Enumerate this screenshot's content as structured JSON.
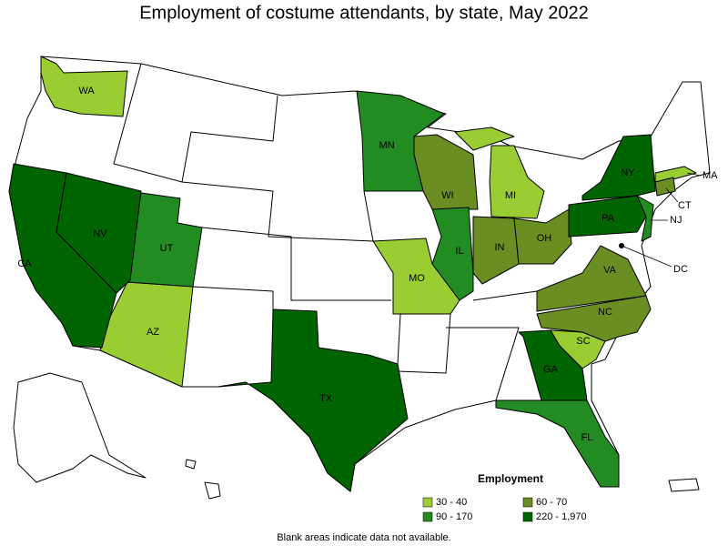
{
  "title": "Employment of costume attendants, by state, May 2022",
  "legend": {
    "title": "Employment",
    "items": [
      {
        "label": "30 - 40",
        "color": "#9acd32",
        "states": [
          "WA",
          "AZ",
          "MO",
          "MI",
          "SC",
          "MA"
        ]
      },
      {
        "label": "60 - 70",
        "color": "#6b8e23",
        "states": [
          "WI",
          "IN",
          "OH",
          "VA",
          "NC",
          "CT"
        ]
      },
      {
        "label": "90 - 170",
        "color": "#228b22",
        "states": [
          "MN",
          "UT",
          "IL",
          "FL",
          "NJ"
        ]
      },
      {
        "label": "220 - 1,970",
        "color": "#006400",
        "states": [
          "CA",
          "NV",
          "TX",
          "GA",
          "NY",
          "PA",
          "DC"
        ]
      }
    ]
  },
  "note": "Blank areas indicate data not available."
}
